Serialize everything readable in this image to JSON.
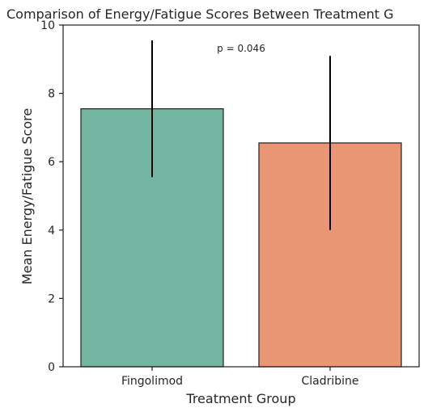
{
  "chart_data": {
    "type": "bar",
    "title": "Comparison of Energy/Fatigue Scores Between Treatment G",
    "xlabel": "Treatment Group",
    "ylabel": "Mean Energy/Fatigue Score",
    "categories": [
      "Fingolimod",
      "Cladribine"
    ],
    "values": [
      7.55,
      6.55
    ],
    "error_low": [
      5.55,
      4.0
    ],
    "error_high": [
      9.55,
      9.1
    ],
    "colors": [
      "#72b6a1",
      "#e99675"
    ],
    "ylim": [
      0,
      10
    ],
    "yticks": [
      "0",
      "2",
      "4",
      "6",
      "8",
      "10"
    ],
    "annotation": "p = 0.046",
    "grid": false,
    "legend": "none"
  }
}
